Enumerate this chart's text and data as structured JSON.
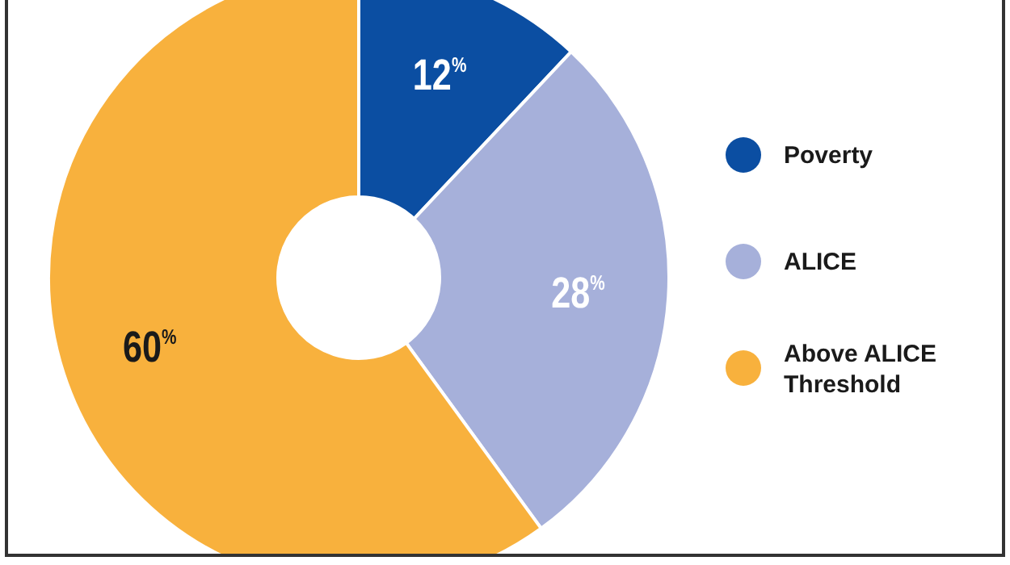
{
  "chart_data": {
    "type": "donut",
    "categories": [
      "Poverty",
      "ALICE",
      "Above ALICE Threshold"
    ],
    "values": [
      12,
      28,
      60
    ],
    "colors": [
      "#0b4ea2",
      "#a6b0da",
      "#f8b13d"
    ],
    "value_labels": [
      "12$^{%}$",
      "28$^{%}$",
      "60$^{%}$"
    ],
    "legend": "right"
  }
}
